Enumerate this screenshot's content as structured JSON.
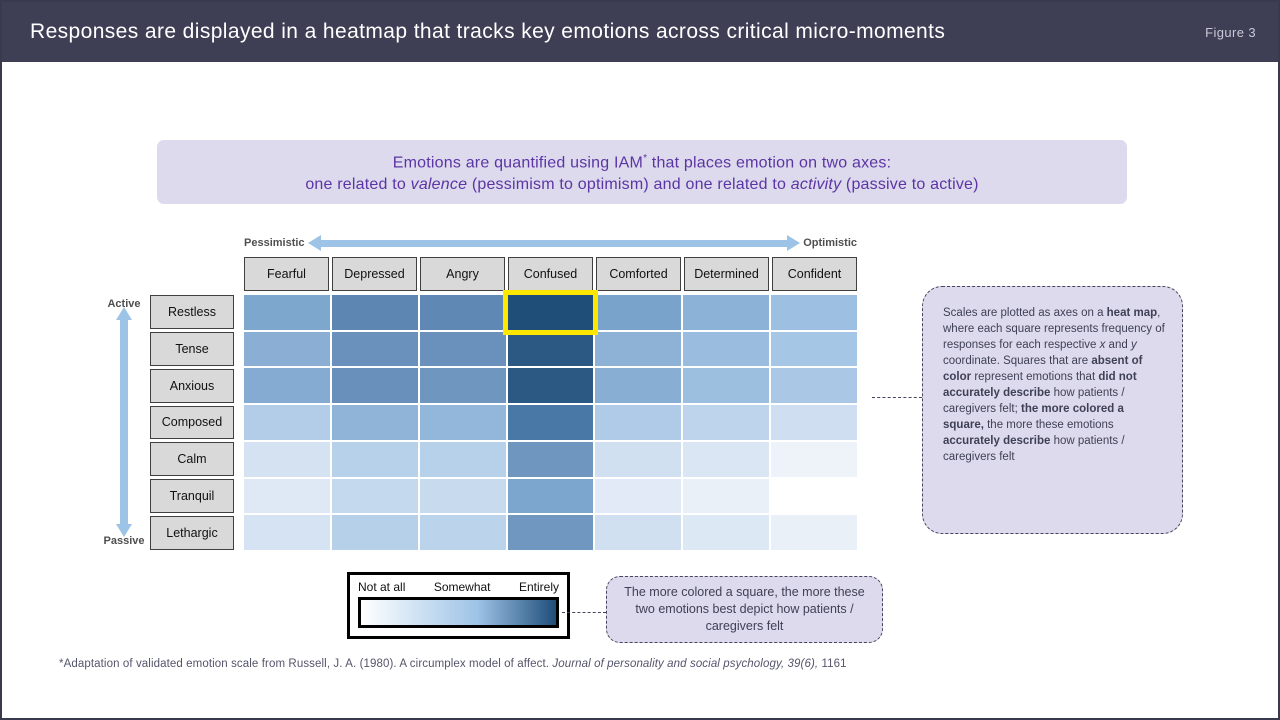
{
  "colors": {
    "header_bg": "#3e3e55",
    "slide_border": "#3a3a4e",
    "callout_bg": "#dcdaec",
    "callout_border": "#44445c",
    "intro_text": "#5c35a4",
    "axis_arrow": "#9dc3e6",
    "axis_box_bg": "#d9d9d9",
    "axis_box_border": "#404040",
    "highlight_border": "#ffe800"
  },
  "header": {
    "title": "Responses are displayed in a heatmap that tracks key emotions across critical micro-moments",
    "figure_label": "Figure 3"
  },
  "intro_callout": {
    "line1": [
      {
        "t": "Emotions are quantified using IAM"
      },
      {
        "t": "*",
        "sup": true
      },
      {
        "t": " that places emotion on two axes:"
      }
    ],
    "line2": [
      {
        "t": "one related to "
      },
      {
        "t": "valence",
        "i": true
      },
      {
        "t": " (pessimism to optimism) and one related to "
      },
      {
        "t": "activity",
        "i": true
      },
      {
        "t": " (passive to active)"
      }
    ]
  },
  "chart_data": {
    "type": "heatmap",
    "title": "Responses are displayed in a heatmap that tracks key emotions across critical micro-moments",
    "x_axis": {
      "dimension": "valence",
      "label_left": "Pessimistic",
      "label_right": "Optimistic"
    },
    "y_axis": {
      "dimension": "activity",
      "label_top": "Active",
      "label_bottom": "Passive"
    },
    "x_categories": [
      "Fearful",
      "Depressed",
      "Angry",
      "Confused",
      "Comforted",
      "Determined",
      "Confident"
    ],
    "y_categories": [
      "Restless",
      "Tense",
      "Anxious",
      "Composed",
      "Calm",
      "Tranquil",
      "Lethargic"
    ],
    "scale": {
      "min_label": "Not at all",
      "mid_label": "Somewhat",
      "max_label": "Entirely",
      "min_color": "#ffffff",
      "mid_color": "#9dc3e6",
      "max_color": "#1f4e79"
    },
    "highlight": {
      "row": 0,
      "col": 3,
      "y": "Restless",
      "x": "Confused",
      "border_color": "#ffe800"
    },
    "intensity": [
      [
        0.48,
        0.64,
        0.63,
        0.97,
        0.5,
        0.41,
        0.34
      ],
      [
        0.42,
        0.57,
        0.57,
        0.87,
        0.41,
        0.36,
        0.3
      ],
      [
        0.45,
        0.58,
        0.55,
        0.87,
        0.43,
        0.34,
        0.28
      ],
      [
        0.27,
        0.4,
        0.38,
        0.68,
        0.28,
        0.23,
        0.16
      ],
      [
        0.14,
        0.24,
        0.24,
        0.55,
        0.16,
        0.12,
        0.04
      ],
      [
        0.1,
        0.2,
        0.18,
        0.46,
        0.09,
        0.06,
        0.0
      ],
      [
        0.13,
        0.25,
        0.22,
        0.54,
        0.16,
        0.11,
        0.06
      ]
    ],
    "cell_colors": [
      [
        "#7ea7ce",
        "#5d86b2",
        "#5f88b4",
        "#1f4e79",
        "#7aa3cb",
        "#8db2d7",
        "#9dbfe1"
      ],
      [
        "#8aaed4",
        "#6991bb",
        "#6991bb",
        "#2b5984",
        "#8db2d6",
        "#99bcdf",
        "#a6c6e5"
      ],
      [
        "#85abd2",
        "#6890ba",
        "#6e96bf",
        "#2b5984",
        "#88aed4",
        "#9cbfe0",
        "#aac8e6"
      ],
      [
        "#b3cde9",
        "#8fb4d8",
        "#93b7da",
        "#4a78a6",
        "#b0cbe8",
        "#bdd4ec",
        "#cfdff1"
      ],
      [
        "#d4e2f2",
        "#b8d1ea",
        "#b8d1ea",
        "#6e96bf",
        "#d0e0f1",
        "#dbe6f4",
        "#eef3fa"
      ],
      [
        "#dfe9f5",
        "#c4d8ee",
        "#c8daee",
        "#7da6ce",
        "#e1eaf6",
        "#eaf0f8",
        "#ffffff"
      ],
      [
        "#d6e3f2",
        "#b6d0ea",
        "#bcd3ec",
        "#6f97c0",
        "#d0e0f1",
        "#dde8f5",
        "#eaf0f8"
      ]
    ]
  },
  "right_callout": {
    "segments": [
      {
        "t": "Scales are plotted as axes on a "
      },
      {
        "t": "heat map",
        "b": true
      },
      {
        "t": ", where each square represents frequency of responses for each respective "
      },
      {
        "t": "x",
        "i": true
      },
      {
        "t": " and "
      },
      {
        "t": "y",
        "i": true
      },
      {
        "t": " coordinate.  Squares that are "
      },
      {
        "t": "absent of color",
        "b": true
      },
      {
        "t": " represent emotions that "
      },
      {
        "t": "did not accurately describe",
        "b": true
      },
      {
        "t": " how patients / caregivers felt; "
      },
      {
        "t": "the more colored a square,",
        "b": true
      },
      {
        "t": " the more these emotions "
      },
      {
        "t": "accurately describe",
        "b": true
      },
      {
        "t": " how patients / caregivers felt"
      }
    ]
  },
  "bottom_callout": {
    "text": "The more colored a square, the more these two emotions best depict how patients / caregivers felt"
  },
  "footnote": {
    "segments": [
      {
        "t": "*Adaptation of validated emotion scale from Russell, J. A. (1980). A circumplex model of affect. "
      },
      {
        "t": "Journal of personality and social psychology, 39(6),",
        "i": true
      },
      {
        "t": " 1161"
      }
    ]
  }
}
